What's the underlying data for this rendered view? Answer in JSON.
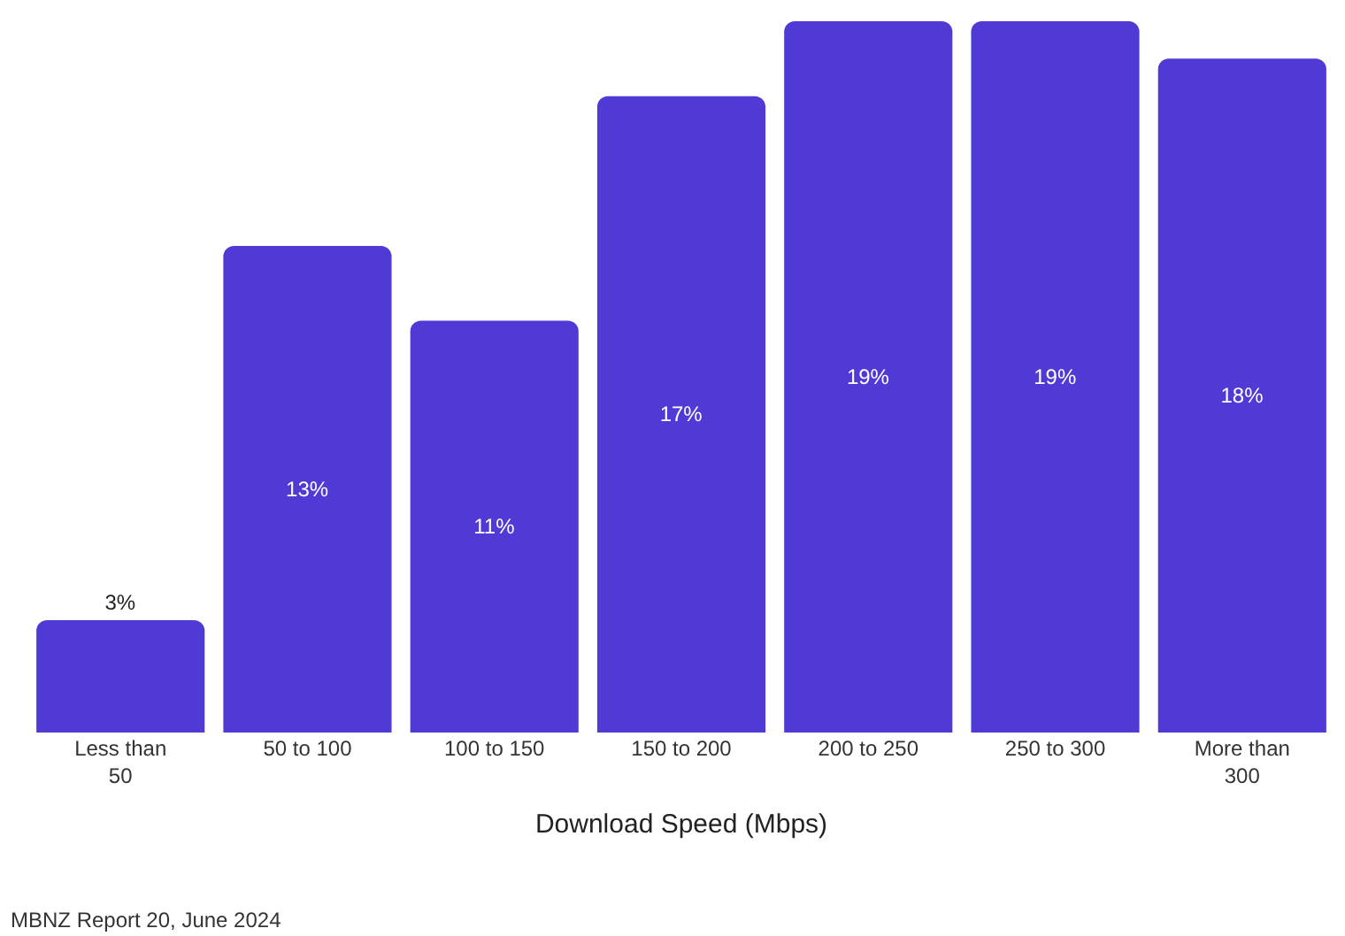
{
  "chart_data": {
    "type": "bar",
    "xlabel": "Download Speed (Mbps)",
    "categories": [
      "Less than 50",
      "50 to 100",
      "100 to 150",
      "150 to 200",
      "200 to 250",
      "250 to 300",
      "More than 300"
    ],
    "values": [
      3,
      13,
      11,
      17,
      19,
      19,
      18
    ],
    "value_labels": [
      "3%",
      "13%",
      "11%",
      "17%",
      "19%",
      "19%",
      "18%"
    ],
    "color": "#4f3ad6",
    "annotations": [
      "MBNZ Report 20, June 2024"
    ]
  }
}
